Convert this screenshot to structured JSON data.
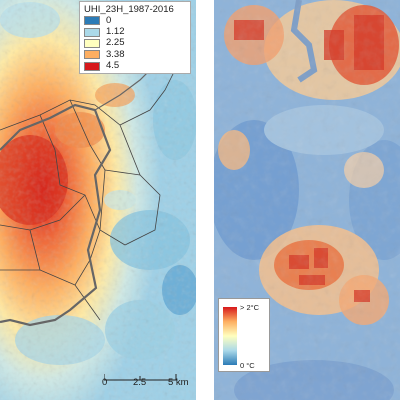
{
  "left_map": {
    "legend": {
      "title": "UHI_23H_1987-2016",
      "items": [
        {
          "label": "0",
          "color": "#2c7bb6"
        },
        {
          "label": "1.12",
          "color": "#abd9e9"
        },
        {
          "label": "2.25",
          "color": "#ffffbf"
        },
        {
          "label": "3.38",
          "color": "#fdae61"
        },
        {
          "label": "4.5",
          "color": "#d7191c"
        }
      ]
    },
    "scalebar": {
      "tick_labels": [
        "0",
        "2.5",
        "5 km"
      ]
    }
  },
  "right_map": {
    "legend": {
      "max_label": "> 2°C",
      "min_label": "0 °C",
      "max_color": "#d7191c",
      "min_color": "#2c7bb6"
    }
  }
}
